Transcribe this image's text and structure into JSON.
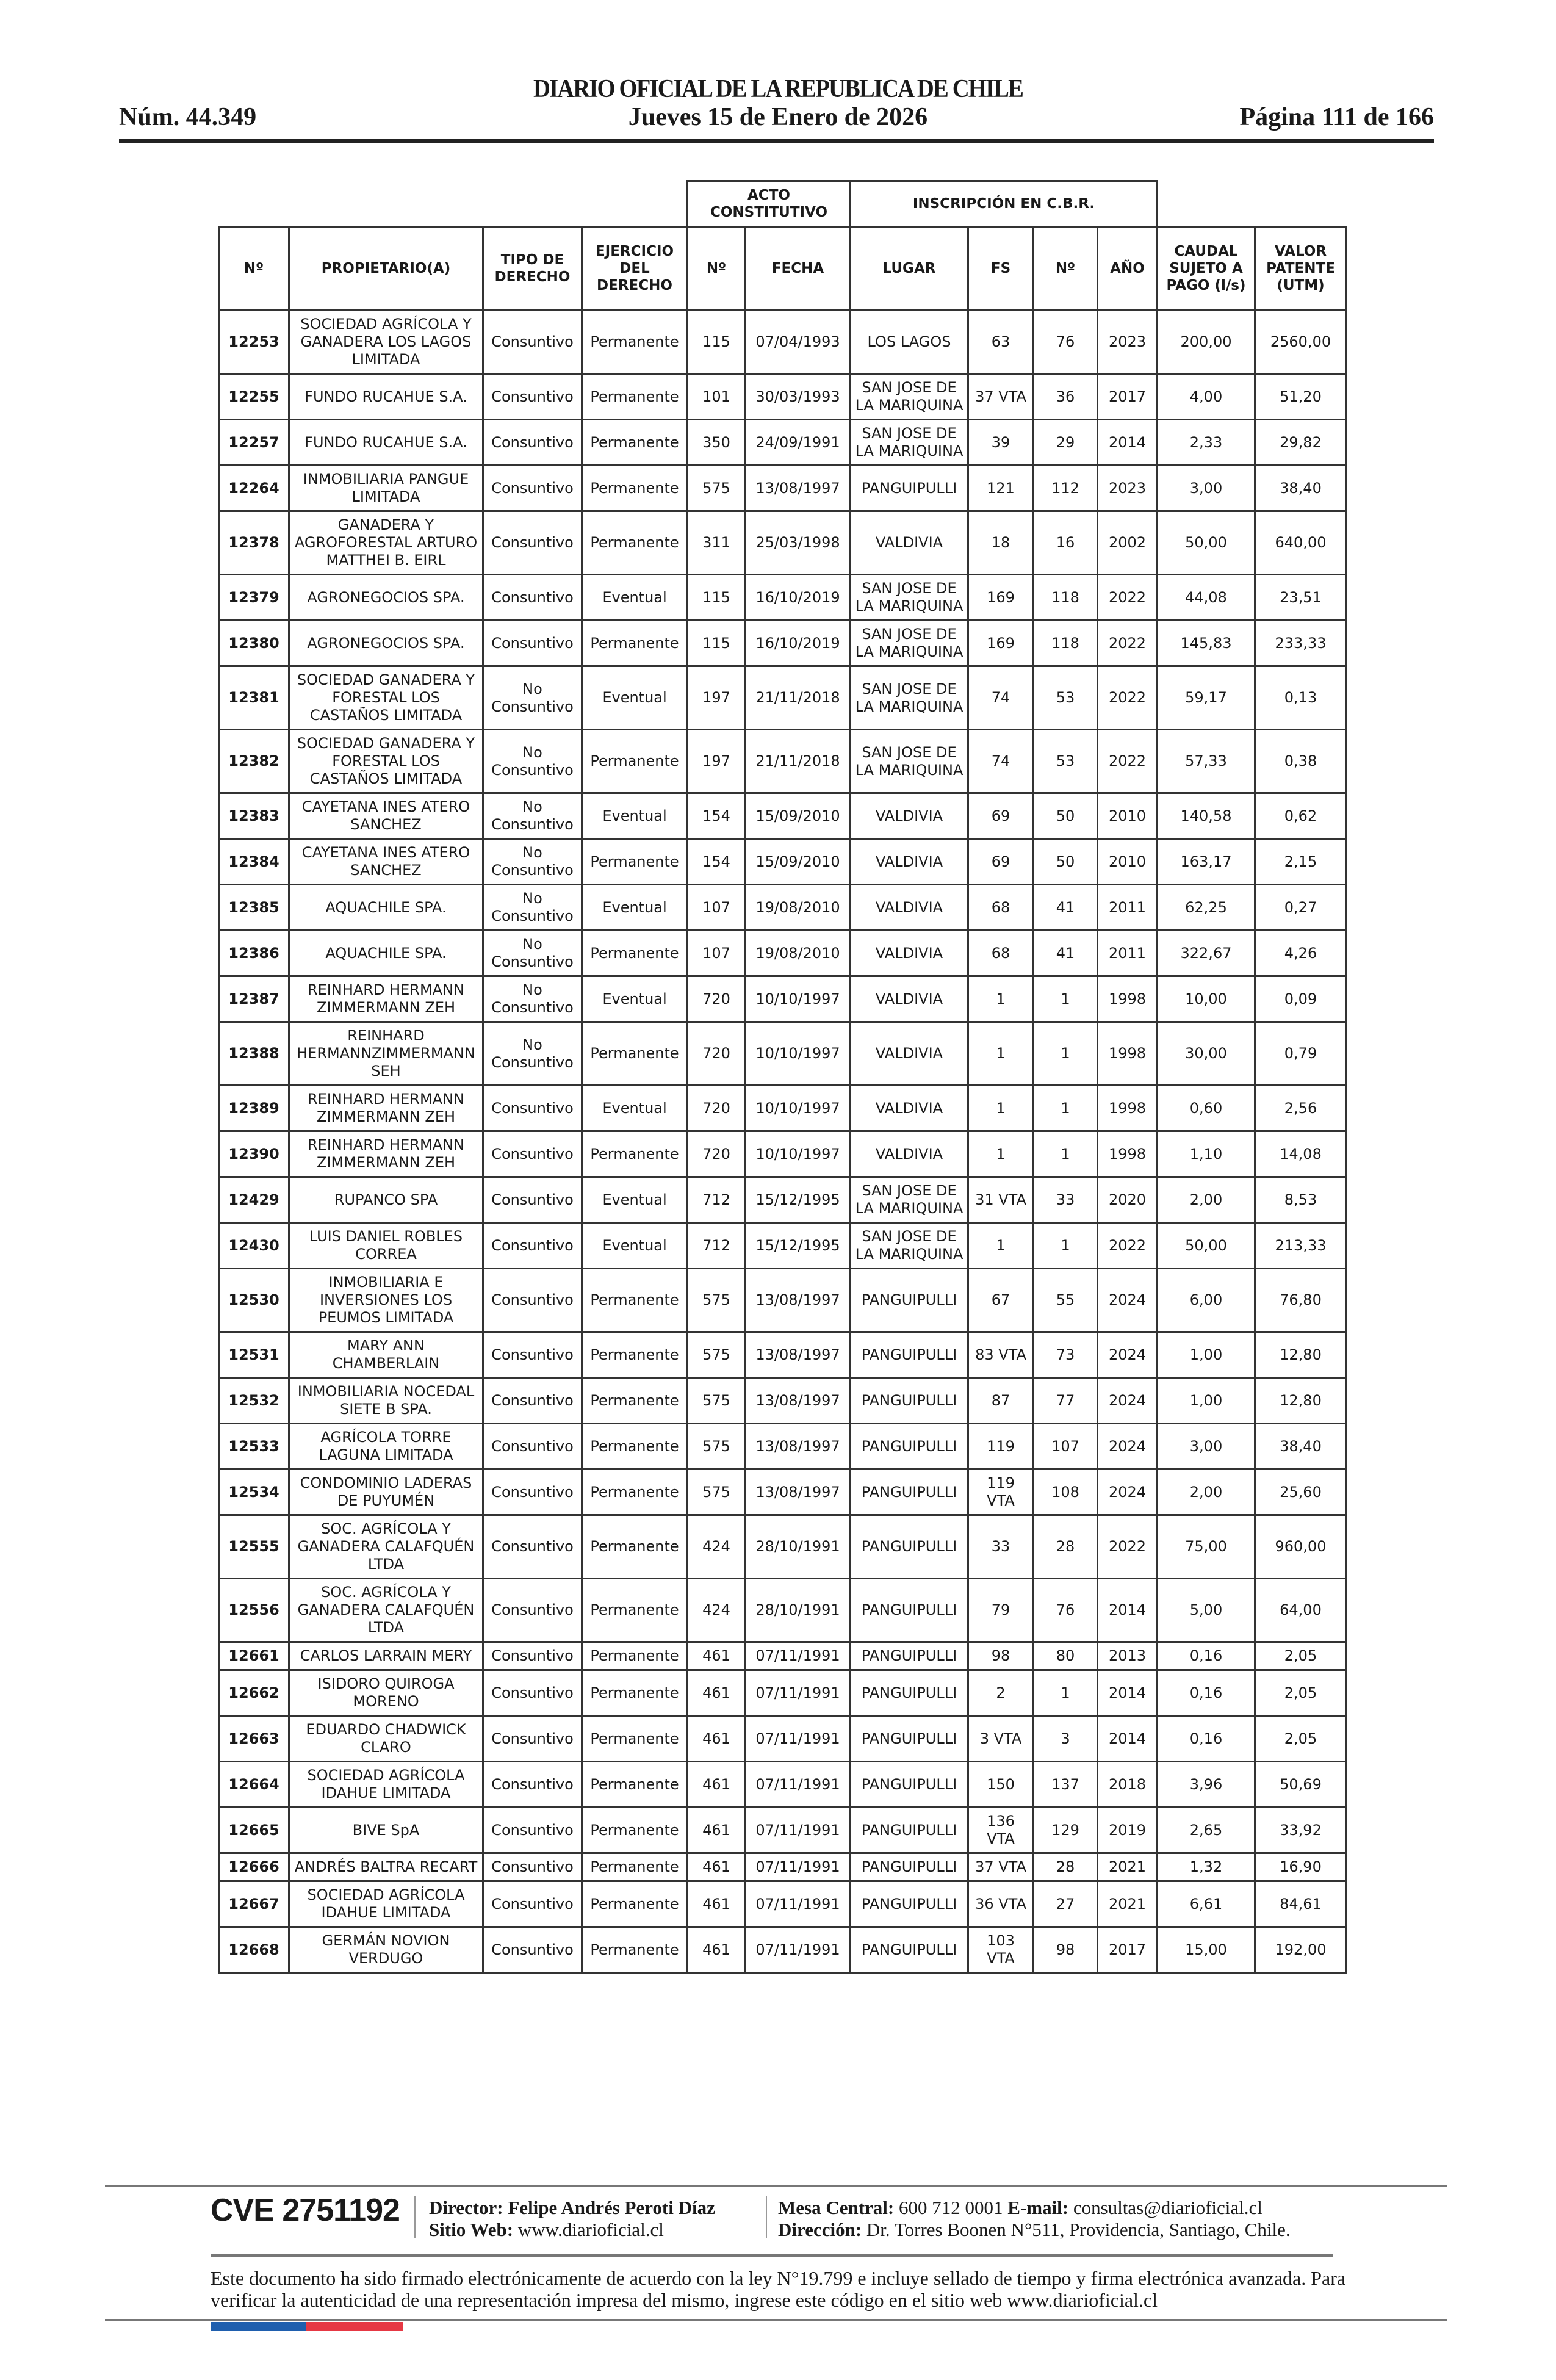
{
  "header": {
    "title": "DIARIO OFICIAL DE LA REPUBLICA DE CHILE",
    "number": "Núm. 44.349",
    "date": "Jueves 15 de Enero de 2026",
    "page": "Página 111 de 166"
  },
  "table": {
    "group_headers": {
      "acto": "ACTO CONSTITUTIVO",
      "inscripcion": "INSCRIPCIÓN EN C.B.R."
    },
    "columns": [
      "Nº",
      "PROPIETARIO(A)",
      "TIPO DE DERECHO",
      "EJERCICIO DEL DERECHO",
      "Nº",
      "FECHA",
      "LUGAR",
      "FS",
      "Nº",
      "AÑO",
      "CAUDAL SUJETO A PAGO (l/s)",
      "VALOR PATENTE (UTM)"
    ],
    "rows": [
      [
        "12253",
        "SOCIEDAD AGRÍCOLA Y GANADERA LOS LAGOS LIMITADA",
        "Consuntivo",
        "Permanente",
        "115",
        "07/04/1993",
        "LOS LAGOS",
        "63",
        "76",
        "2023",
        "200,00",
        "2560,00"
      ],
      [
        "12255",
        "FUNDO RUCAHUE S.A.",
        "Consuntivo",
        "Permanente",
        "101",
        "30/03/1993",
        "SAN JOSE DE LA MARIQUINA",
        "37 VTA",
        "36",
        "2017",
        "4,00",
        "51,20"
      ],
      [
        "12257",
        "FUNDO RUCAHUE S.A.",
        "Consuntivo",
        "Permanente",
        "350",
        "24/09/1991",
        "SAN JOSE DE LA MARIQUINA",
        "39",
        "29",
        "2014",
        "2,33",
        "29,82"
      ],
      [
        "12264",
        "INMOBILIARIA PANGUE LIMITADA",
        "Consuntivo",
        "Permanente",
        "575",
        "13/08/1997",
        "PANGUIPULLI",
        "121",
        "112",
        "2023",
        "3,00",
        "38,40"
      ],
      [
        "12378",
        "GANADERA Y AGROFORESTAL ARTURO MATTHEI B. EIRL",
        "Consuntivo",
        "Permanente",
        "311",
        "25/03/1998",
        "VALDIVIA",
        "18",
        "16",
        "2002",
        "50,00",
        "640,00"
      ],
      [
        "12379",
        "AGRONEGOCIOS SPA.",
        "Consuntivo",
        "Eventual",
        "115",
        "16/10/2019",
        "SAN JOSE DE LA MARIQUINA",
        "169",
        "118",
        "2022",
        "44,08",
        "23,51"
      ],
      [
        "12380",
        "AGRONEGOCIOS SPA.",
        "Consuntivo",
        "Permanente",
        "115",
        "16/10/2019",
        "SAN JOSE DE LA MARIQUINA",
        "169",
        "118",
        "2022",
        "145,83",
        "233,33"
      ],
      [
        "12381",
        "SOCIEDAD GANADERA Y FORESTAL LOS CASTAÑOS LIMITADA",
        "No Consuntivo",
        "Eventual",
        "197",
        "21/11/2018",
        "SAN JOSE DE LA MARIQUINA",
        "74",
        "53",
        "2022",
        "59,17",
        "0,13"
      ],
      [
        "12382",
        "SOCIEDAD GANADERA Y FORESTAL LOS CASTAÑOS LIMITADA",
        "No Consuntivo",
        "Permanente",
        "197",
        "21/11/2018",
        "SAN JOSE DE LA MARIQUINA",
        "74",
        "53",
        "2022",
        "57,33",
        "0,38"
      ],
      [
        "12383",
        "CAYETANA INES ATERO SANCHEZ",
        "No Consuntivo",
        "Eventual",
        "154",
        "15/09/2010",
        "VALDIVIA",
        "69",
        "50",
        "2010",
        "140,58",
        "0,62"
      ],
      [
        "12384",
        "CAYETANA INES ATERO SANCHEZ",
        "No Consuntivo",
        "Permanente",
        "154",
        "15/09/2010",
        "VALDIVIA",
        "69",
        "50",
        "2010",
        "163,17",
        "2,15"
      ],
      [
        "12385",
        "AQUACHILE SPA.",
        "No Consuntivo",
        "Eventual",
        "107",
        "19/08/2010",
        "VALDIVIA",
        "68",
        "41",
        "2011",
        "62,25",
        "0,27"
      ],
      [
        "12386",
        "AQUACHILE SPA.",
        "No Consuntivo",
        "Permanente",
        "107",
        "19/08/2010",
        "VALDIVIA",
        "68",
        "41",
        "2011",
        "322,67",
        "4,26"
      ],
      [
        "12387",
        "REINHARD HERMANN ZIMMERMANN ZEH",
        "No Consuntivo",
        "Eventual",
        "720",
        "10/10/1997",
        "VALDIVIA",
        "1",
        "1",
        "1998",
        "10,00",
        "0,09"
      ],
      [
        "12388",
        "REINHARD HERMANNZIMMERMANN SEH",
        "No Consuntivo",
        "Permanente",
        "720",
        "10/10/1997",
        "VALDIVIA",
        "1",
        "1",
        "1998",
        "30,00",
        "0,79"
      ],
      [
        "12389",
        "REINHARD HERMANN ZIMMERMANN ZEH",
        "Consuntivo",
        "Eventual",
        "720",
        "10/10/1997",
        "VALDIVIA",
        "1",
        "1",
        "1998",
        "0,60",
        "2,56"
      ],
      [
        "12390",
        "REINHARD HERMANN ZIMMERMANN ZEH",
        "Consuntivo",
        "Permanente",
        "720",
        "10/10/1997",
        "VALDIVIA",
        "1",
        "1",
        "1998",
        "1,10",
        "14,08"
      ],
      [
        "12429",
        "RUPANCO SPA",
        "Consuntivo",
        "Eventual",
        "712",
        "15/12/1995",
        "SAN JOSE DE LA MARIQUINA",
        "31 VTA",
        "33",
        "2020",
        "2,00",
        "8,53"
      ],
      [
        "12430",
        "LUIS DANIEL ROBLES CORREA",
        "Consuntivo",
        "Eventual",
        "712",
        "15/12/1995",
        "SAN JOSE DE LA MARIQUINA",
        "1",
        "1",
        "2022",
        "50,00",
        "213,33"
      ],
      [
        "12530",
        "INMOBILIARIA E INVERSIONES LOS PEUMOS LIMITADA",
        "Consuntivo",
        "Permanente",
        "575",
        "13/08/1997",
        "PANGUIPULLI",
        "67",
        "55",
        "2024",
        "6,00",
        "76,80"
      ],
      [
        "12531",
        "MARY ANN CHAMBERLAIN",
        "Consuntivo",
        "Permanente",
        "575",
        "13/08/1997",
        "PANGUIPULLI",
        "83 VTA",
        "73",
        "2024",
        "1,00",
        "12,80"
      ],
      [
        "12532",
        "INMOBILIARIA NOCEDAL SIETE B SPA.",
        "Consuntivo",
        "Permanente",
        "575",
        "13/08/1997",
        "PANGUIPULLI",
        "87",
        "77",
        "2024",
        "1,00",
        "12,80"
      ],
      [
        "12533",
        "AGRÍCOLA TORRE LAGUNA LIMITADA",
        "Consuntivo",
        "Permanente",
        "575",
        "13/08/1997",
        "PANGUIPULLI",
        "119",
        "107",
        "2024",
        "3,00",
        "38,40"
      ],
      [
        "12534",
        "CONDOMINIO LADERAS DE PUYUMÉN",
        "Consuntivo",
        "Permanente",
        "575",
        "13/08/1997",
        "PANGUIPULLI",
        "119 VTA",
        "108",
        "2024",
        "2,00",
        "25,60"
      ],
      [
        "12555",
        "SOC. AGRÍCOLA Y GANADERA CALAFQUÉN LTDA",
        "Consuntivo",
        "Permanente",
        "424",
        "28/10/1991",
        "PANGUIPULLI",
        "33",
        "28",
        "2022",
        "75,00",
        "960,00"
      ],
      [
        "12556",
        "SOC. AGRÍCOLA Y GANADERA CALAFQUÉN LTDA",
        "Consuntivo",
        "Permanente",
        "424",
        "28/10/1991",
        "PANGUIPULLI",
        "79",
        "76",
        "2014",
        "5,00",
        "64,00"
      ],
      [
        "12661",
        "CARLOS LARRAIN MERY",
        "Consuntivo",
        "Permanente",
        "461",
        "07/11/1991",
        "PANGUIPULLI",
        "98",
        "80",
        "2013",
        "0,16",
        "2,05"
      ],
      [
        "12662",
        "ISIDORO QUIROGA MORENO",
        "Consuntivo",
        "Permanente",
        "461",
        "07/11/1991",
        "PANGUIPULLI",
        "2",
        "1",
        "2014",
        "0,16",
        "2,05"
      ],
      [
        "12663",
        "EDUARDO CHADWICK CLARO",
        "Consuntivo",
        "Permanente",
        "461",
        "07/11/1991",
        "PANGUIPULLI",
        "3 VTA",
        "3",
        "2014",
        "0,16",
        "2,05"
      ],
      [
        "12664",
        "SOCIEDAD AGRÍCOLA IDAHUE LIMITADA",
        "Consuntivo",
        "Permanente",
        "461",
        "07/11/1991",
        "PANGUIPULLI",
        "150",
        "137",
        "2018",
        "3,96",
        "50,69"
      ],
      [
        "12665",
        "BIVE SpA",
        "Consuntivo",
        "Permanente",
        "461",
        "07/11/1991",
        "PANGUIPULLI",
        "136 VTA",
        "129",
        "2019",
        "2,65",
        "33,92"
      ],
      [
        "12666",
        "ANDRÉS BALTRA RECART",
        "Consuntivo",
        "Permanente",
        "461",
        "07/11/1991",
        "PANGUIPULLI",
        "37 VTA",
        "28",
        "2021",
        "1,32",
        "16,90"
      ],
      [
        "12667",
        "SOCIEDAD AGRÍCOLA IDAHUE LIMITADA",
        "Consuntivo",
        "Permanente",
        "461",
        "07/11/1991",
        "PANGUIPULLI",
        "36 VTA",
        "27",
        "2021",
        "6,61",
        "84,61"
      ],
      [
        "12668",
        "GERMÁN NOVION VERDUGO",
        "Consuntivo",
        "Permanente",
        "461",
        "07/11/1991",
        "PANGUIPULLI",
        "103 VTA",
        "98",
        "2017",
        "15,00",
        "192,00"
      ]
    ]
  },
  "footer": {
    "cve": "CVE 2751192",
    "director_label": "Director:",
    "director": "Felipe Andrés Peroti Díaz",
    "web_label": "Sitio Web:",
    "web": "www.diarioficial.cl",
    "mesa_label": "Mesa Central:",
    "mesa": "600 712 0001",
    "email_label": "E-mail:",
    "email": "consultas@diarioficial.cl",
    "address_label": "Dirección:",
    "address": "Dr. Torres Boonen N°511, Providencia, Santiago, Chile.",
    "legal": "Este documento ha sido firmado electrónicamente de acuerdo con la ley N°19.799 e incluye sellado de tiempo y firma electrónica avanzada. Para verificar la autenticidad de una representación impresa del mismo, ingrese este código en el sitio web www.diarioficial.cl",
    "flag_colors": {
      "blue": "#1f5fae",
      "red": "#e63844"
    }
  }
}
